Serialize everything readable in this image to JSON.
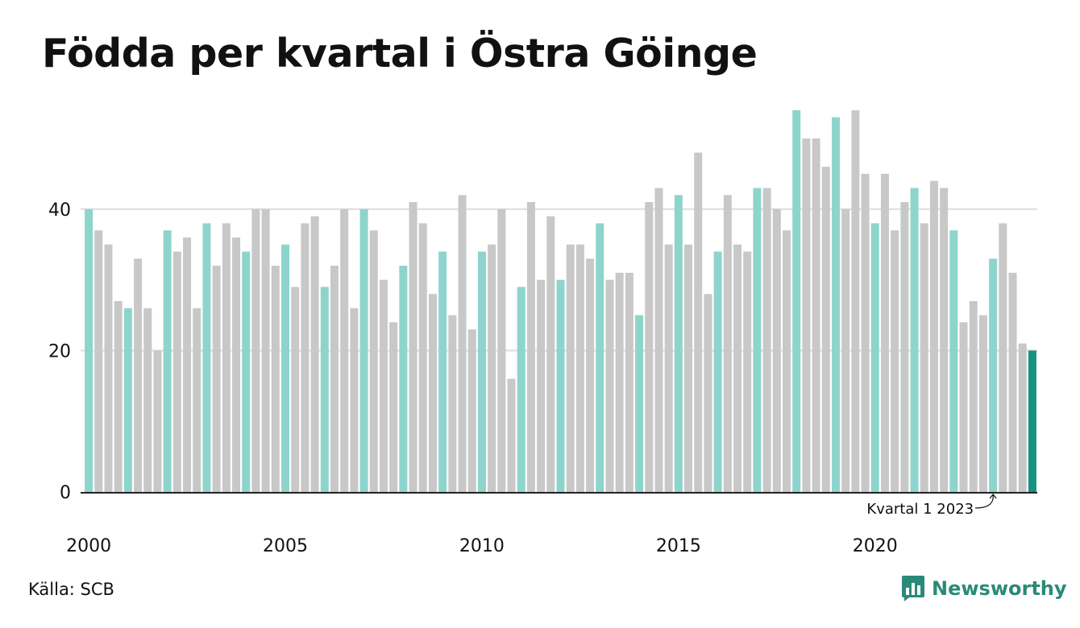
{
  "title": "Födda per kvartal i Östra Göinge",
  "source": "Källa: SCB",
  "brand": {
    "name": "Newsworthy",
    "icon": "bar-chart-speech-icon",
    "color": "#2a8a78"
  },
  "colors": {
    "q1": "#8dd5cc",
    "other": "#c8c8c8",
    "highlight": "#17917f",
    "grid": "#dddddd",
    "axis": "#222222"
  },
  "chart_data": {
    "type": "bar",
    "title": "Födda per kvartal i Östra Göinge",
    "xlabel": "",
    "ylabel": "",
    "ylim": [
      0,
      55
    ],
    "yticks": [
      0,
      20,
      40
    ],
    "xtick_labels": [
      "2000",
      "2005",
      "2010",
      "2015",
      "2020"
    ],
    "grid": true,
    "annotation": "Kvartal 1 2023",
    "categories": [
      "2000 Q1",
      "2000 Q2",
      "2000 Q3",
      "2000 Q4",
      "2001 Q1",
      "2001 Q2",
      "2001 Q3",
      "2001 Q4",
      "2002 Q1",
      "2002 Q2",
      "2002 Q3",
      "2002 Q4",
      "2003 Q1",
      "2003 Q2",
      "2003 Q3",
      "2003 Q4",
      "2004 Q1",
      "2004 Q2",
      "2004 Q3",
      "2004 Q4",
      "2005 Q1",
      "2005 Q2",
      "2005 Q3",
      "2005 Q4",
      "2006 Q1",
      "2006 Q2",
      "2006 Q3",
      "2006 Q4",
      "2007 Q1",
      "2007 Q2",
      "2007 Q3",
      "2007 Q4",
      "2008 Q1",
      "2008 Q2",
      "2008 Q3",
      "2008 Q4",
      "2009 Q1",
      "2009 Q2",
      "2009 Q3",
      "2009 Q4",
      "2010 Q1",
      "2010 Q2",
      "2010 Q3",
      "2010 Q4",
      "2011 Q1",
      "2011 Q2",
      "2011 Q3",
      "2011 Q4",
      "2012 Q1",
      "2012 Q2",
      "2012 Q3",
      "2012 Q4",
      "2013 Q1",
      "2013 Q2",
      "2013 Q3",
      "2013 Q4",
      "2014 Q1",
      "2014 Q2",
      "2014 Q3",
      "2014 Q4",
      "2015 Q1",
      "2015 Q2",
      "2015 Q3",
      "2015 Q4",
      "2016 Q1",
      "2016 Q2",
      "2016 Q3",
      "2016 Q4",
      "2017 Q1",
      "2017 Q2",
      "2017 Q3",
      "2017 Q4",
      "2018 Q1",
      "2018 Q2",
      "2018 Q3",
      "2018 Q4",
      "2019 Q1",
      "2019 Q2",
      "2019 Q3",
      "2019 Q4",
      "2020 Q1",
      "2020 Q2",
      "2020 Q3",
      "2020 Q4",
      "2021 Q1",
      "2021 Q2",
      "2021 Q3",
      "2021 Q4",
      "2022 Q1",
      "2022 Q2",
      "2022 Q3",
      "2022 Q4",
      "2023 Q1",
      "2023 Q2",
      "2023 Q3",
      "2023 Q4",
      "2024 Q1"
    ],
    "values": [
      40,
      37,
      35,
      27,
      26,
      33,
      26,
      20,
      37,
      34,
      36,
      26,
      38,
      32,
      38,
      36,
      34,
      40,
      40,
      32,
      35,
      29,
      38,
      39,
      29,
      32,
      40,
      26,
      40,
      37,
      30,
      24,
      32,
      41,
      38,
      28,
      34,
      25,
      42,
      23,
      34,
      35,
      40,
      16,
      29,
      41,
      30,
      39,
      30,
      35,
      35,
      33,
      38,
      30,
      31,
      31,
      25,
      41,
      43,
      35,
      42,
      35,
      48,
      28,
      34,
      42,
      35,
      34,
      43,
      43,
      40,
      37,
      54,
      50,
      50,
      46,
      53,
      40,
      54,
      45,
      38,
      45,
      37,
      41,
      43,
      38,
      44,
      43,
      37,
      24,
      27,
      25,
      33,
      38,
      31,
      21,
      20
    ]
  }
}
